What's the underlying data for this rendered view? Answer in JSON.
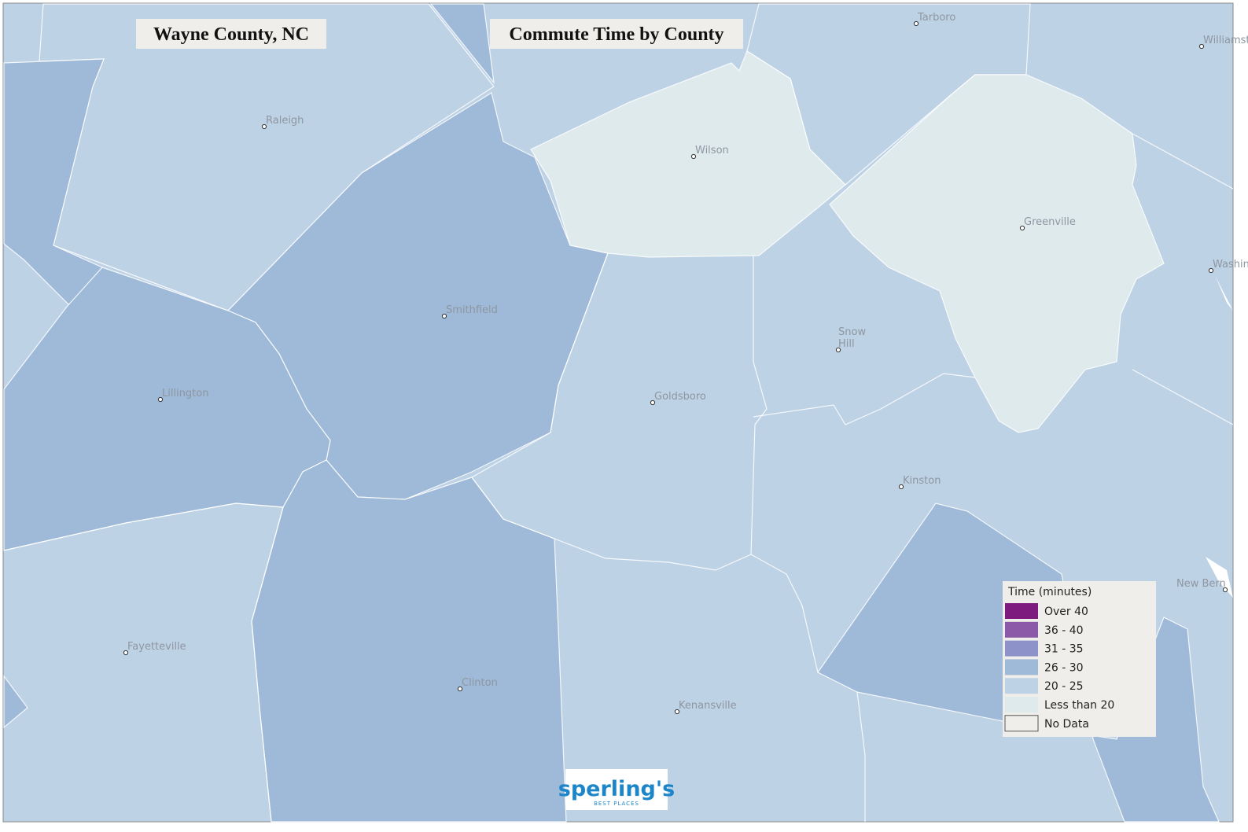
{
  "header": {
    "title": "Wayne County, NC",
    "subtitle": "Commute Time by County"
  },
  "cities": [
    "Tarboro",
    "Williamston",
    "Raleigh",
    "Wilson",
    "Greenville",
    "Washington",
    "Smithfield",
    "Snow Hill",
    "Lillington",
    "Goldsboro",
    "Kinston",
    "New Bern",
    "Fayetteville",
    "Clinton",
    "Kenansville"
  ],
  "legend": {
    "title": "Time  (minutes)",
    "items": [
      {
        "label": "Over 40",
        "color": "#7d1b7e"
      },
      {
        "label": "36 - 40",
        "color": "#8b59a8"
      },
      {
        "label": "31 - 35",
        "color": "#8d93c8"
      },
      {
        "label": "26 - 30",
        "color": "#9fbad8"
      },
      {
        "label": "20 - 25",
        "color": "#bed2e6"
      },
      {
        "label": "Less than 20",
        "color": "#dfeaed"
      },
      {
        "label": "No Data",
        "color": "#f0eeea"
      }
    ]
  },
  "logo": {
    "name": "sperling's",
    "tagline": "BEST PLACES"
  }
}
